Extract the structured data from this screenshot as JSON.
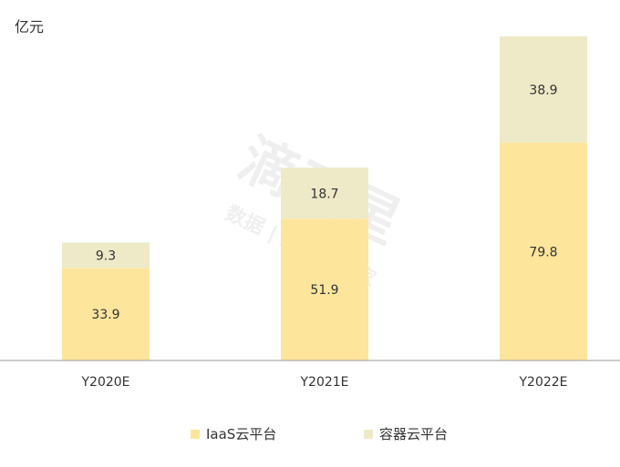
{
  "chart_data": {
    "type": "bar",
    "stacked": true,
    "unit_label": "亿元",
    "categories": [
      "Y2020E",
      "Y2021E",
      "Y2022E"
    ],
    "series": [
      {
        "name": "IaaS云平台",
        "values": [
          33.9,
          51.9,
          79.8
        ],
        "color": "#fde59c"
      },
      {
        "name": "容器云平台",
        "values": [
          9.3,
          18.7,
          38.9
        ],
        "color": "#eeeac8"
      }
    ],
    "ylim": [
      0,
      120
    ],
    "grid": false,
    "legend_position": "bottom"
  }
}
